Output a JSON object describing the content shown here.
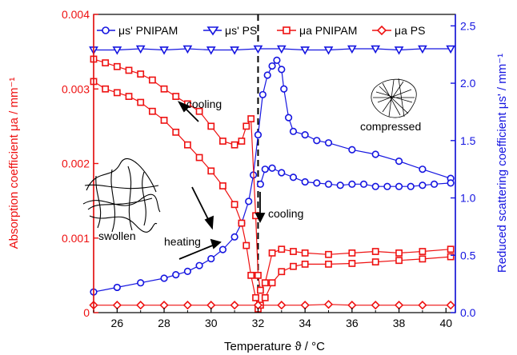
{
  "chart_data": {
    "type": "line",
    "xlabel": "Temperature  ϑ / °C",
    "ylabel_left": "Absorption coefficient  μa / mm⁻¹",
    "ylabel_right": "Reduced scattering coefficient  μs' / mm⁻¹",
    "xlim": [
      25,
      40.4
    ],
    "ylim_left": [
      0,
      0.004
    ],
    "ylim_right": [
      0,
      2.6
    ],
    "x_ticks": [
      "26",
      "28",
      "30",
      "32",
      "34",
      "36",
      "38",
      "40"
    ],
    "y_left_ticks": [
      "0",
      "0.001",
      "0.002",
      "0.003",
      "0.004"
    ],
    "y_right_ticks": [
      "0.0",
      "0.5",
      "1.0",
      "1.5",
      "2.0",
      "2.5"
    ],
    "colors": {
      "left_axis": "#ee1111",
      "right_axis": "#1515e0",
      "guide": "#000000"
    },
    "vline_x": 32.0,
    "legend": {
      "placement": "top",
      "entries": [
        {
          "label": "μs' PNIPAM",
          "marker": "circle",
          "color": "#1515e0"
        },
        {
          "label": "μs' PS",
          "marker": "triangle-down",
          "color": "#1515e0"
        },
        {
          "label": "μa PNIPAM",
          "marker": "square",
          "color": "#ee1111"
        },
        {
          "label": "μa PS",
          "marker": "diamond",
          "color": "#ee1111"
        }
      ]
    },
    "series": [
      {
        "name": "μs' PS",
        "axis": "right",
        "x": [
          25,
          26,
          27,
          28,
          29,
          30,
          31,
          32,
          33,
          34,
          35,
          36,
          37,
          38,
          39,
          40.2
        ],
        "y": [
          2.29,
          2.29,
          2.3,
          2.29,
          2.3,
          2.29,
          2.29,
          2.3,
          2.3,
          2.29,
          2.29,
          2.3,
          2.3,
          2.29,
          2.3,
          2.3
        ]
      },
      {
        "name": "μs' PNIPAM heating",
        "axis": "right",
        "x": [
          25,
          26,
          27,
          28,
          28.5,
          29,
          29.5,
          30,
          30.5,
          31,
          31.3,
          31.6,
          31.8,
          32.0,
          32.2,
          32.4,
          32.6,
          32.8,
          33.0,
          33.1,
          33.3,
          33.5,
          34,
          34.5,
          35,
          36,
          37,
          38,
          39,
          40.2
        ],
        "y": [
          0.18,
          0.22,
          0.26,
          0.3,
          0.33,
          0.36,
          0.41,
          0.47,
          0.55,
          0.66,
          0.78,
          0.97,
          1.2,
          1.55,
          1.9,
          2.07,
          2.15,
          2.2,
          2.12,
          1.95,
          1.7,
          1.58,
          1.55,
          1.5,
          1.48,
          1.42,
          1.38,
          1.32,
          1.25,
          1.17
        ]
      },
      {
        "name": "μs' PNIPAM cooling",
        "axis": "right",
        "x": [
          32.1,
          32.3,
          32.6,
          33,
          33.5,
          34,
          34.5,
          35,
          35.5,
          36,
          36.5,
          37,
          37.5,
          38,
          38.5,
          39,
          39.5,
          40.2
        ],
        "y": [
          1.12,
          1.25,
          1.26,
          1.22,
          1.18,
          1.14,
          1.13,
          1.12,
          1.11,
          1.12,
          1.12,
          1.1,
          1.1,
          1.1,
          1.1,
          1.11,
          1.12,
          1.13
        ]
      },
      {
        "name": "μa PNIPAM heating",
        "axis": "left",
        "x": [
          25,
          25.5,
          26,
          26.5,
          27,
          27.5,
          28,
          28.5,
          29,
          29.5,
          30,
          30.5,
          31,
          31.3,
          31.5,
          31.7,
          31.9,
          32.0,
          32.1,
          32.3,
          32.6,
          33,
          33.5,
          34,
          35,
          36,
          37,
          38,
          39,
          40.2
        ],
        "y": [
          0.0031,
          0.003,
          0.00295,
          0.0029,
          0.00282,
          0.0027,
          0.00258,
          0.00242,
          0.00225,
          0.00208,
          0.0019,
          0.0017,
          0.00145,
          0.0012,
          0.0009,
          0.0005,
          0.0002,
          5e-05,
          0.0001,
          0.0002,
          0.0004,
          0.00055,
          0.00062,
          0.00065,
          0.00065,
          0.00066,
          0.00068,
          0.0007,
          0.00072,
          0.00075
        ]
      },
      {
        "name": "μa PNIPAM cooling",
        "axis": "left",
        "x": [
          25,
          25.5,
          26,
          26.5,
          27,
          27.5,
          28,
          28.5,
          29,
          29.5,
          30,
          30.5,
          31,
          31.3,
          31.5,
          31.7,
          31.9,
          32.0,
          32.1,
          32.3,
          32.6,
          33,
          33.5,
          34,
          35,
          36,
          37,
          38,
          39,
          40.2
        ],
        "y": [
          0.0034,
          0.00335,
          0.0033,
          0.00325,
          0.0032,
          0.00312,
          0.003,
          0.0029,
          0.0028,
          0.0027,
          0.0025,
          0.0023,
          0.00225,
          0.0023,
          0.0025,
          0.0026,
          0.0013,
          0.0005,
          0.0003,
          0.0004,
          0.0008,
          0.00085,
          0.00082,
          0.0008,
          0.00078,
          0.0008,
          0.00082,
          0.0008,
          0.00082,
          0.00085
        ]
      },
      {
        "name": "μa PS",
        "axis": "left",
        "x": [
          25,
          26,
          27,
          28,
          29,
          30,
          31,
          32,
          33,
          34,
          35,
          36,
          37,
          38,
          39,
          40.2
        ],
        "y": [
          0.0001,
          0.0001,
          0.0001,
          0.0001,
          0.0001,
          0.0001,
          0.0001,
          0.0001,
          0.0001,
          0.0001,
          0.00011,
          0.0001,
          0.0001,
          0.0001,
          0.0001,
          0.0001
        ]
      }
    ],
    "annotations": [
      {
        "text": "cooling"
      },
      {
        "text": "cooling"
      },
      {
        "text": "heating"
      },
      {
        "text": "swollen"
      },
      {
        "text": "compressed"
      }
    ]
  }
}
